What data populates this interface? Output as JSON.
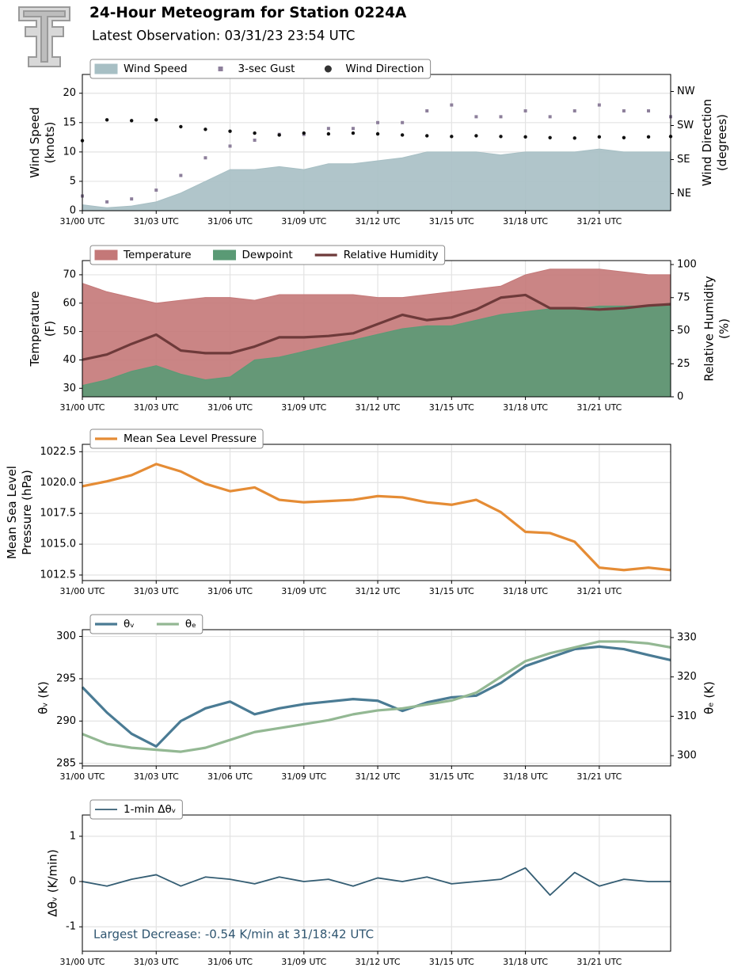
{
  "header": {
    "title": "24-Hour Meteogram for Station 0224A",
    "subtitle": "Latest Observation: 03/31/23 23:54 UTC"
  },
  "chart_data": [
    {
      "type": "meteogram-panel",
      "ylabel": [
        "Wind Speed",
        "(knots)"
      ],
      "y2label": [
        "Wind Direction",
        "(degrees)"
      ],
      "grid": true,
      "legend": "upper left",
      "xlim": [
        0,
        23.9
      ],
      "xticks": [
        {
          "value": 0,
          "label": "31/00 UTC"
        },
        {
          "value": 3,
          "label": "31/03 UTC"
        },
        {
          "value": 6,
          "label": "31/06 UTC"
        },
        {
          "value": 9,
          "label": "31/09 UTC"
        },
        {
          "value": 12,
          "label": "31/12 UTC"
        },
        {
          "value": 15,
          "label": "31/15 UTC"
        },
        {
          "value": 18,
          "label": "31/18 UTC"
        },
        {
          "value": 21,
          "label": "31/21 UTC"
        }
      ],
      "ylim": [
        0,
        23.2
      ],
      "yticks": [
        0,
        5,
        10,
        15,
        20
      ],
      "y2lim": [
        0,
        360
      ],
      "y2ticks": [
        {
          "value": 45,
          "label": "NE"
        },
        {
          "value": 135,
          "label": "SE"
        },
        {
          "value": 225,
          "label": "SW"
        },
        {
          "value": 315,
          "label": "NW"
        }
      ],
      "x": [
        0,
        1,
        2,
        3,
        4,
        5,
        6,
        7,
        8,
        9,
        10,
        11,
        12,
        13,
        14,
        15,
        16,
        17,
        18,
        19,
        20,
        21,
        22,
        23,
        23.9
      ],
      "series": [
        {
          "name": "Wind Speed",
          "style": "area",
          "color": "#a7bfc4",
          "values": [
            1,
            0.5,
            0.8,
            1.5,
            3,
            5,
            7,
            7,
            7.5,
            7,
            8,
            8,
            8.5,
            9,
            10,
            10,
            10,
            9.5,
            10,
            10,
            10,
            10.5,
            10,
            10,
            10
          ]
        },
        {
          "name": "3-sec Gust",
          "style": "squares",
          "color": "#8d7f9b",
          "values": [
            2.5,
            1.5,
            2,
            3.5,
            6,
            9,
            11,
            12,
            13,
            13,
            14,
            14,
            15,
            15,
            17,
            18,
            16,
            16,
            17,
            16,
            17,
            18,
            17,
            17,
            16
          ]
        },
        {
          "name": "Wind Direction",
          "style": "points",
          "color": "#111111",
          "axis": "y2",
          "values": [
            185,
            240,
            238,
            240,
            222,
            215,
            210,
            205,
            200,
            205,
            203,
            205,
            203,
            200,
            198,
            196,
            198,
            196,
            195,
            193,
            192,
            195,
            193,
            195,
            196
          ]
        }
      ]
    },
    {
      "type": "meteogram-panel",
      "ylabel": [
        "Temperature",
        "(F)"
      ],
      "y2label": [
        "Relative Humidity",
        "(%)"
      ],
      "grid": true,
      "legend": "upper left",
      "xlim": [
        0,
        23.9
      ],
      "xticks": [
        {
          "value": 0,
          "label": "31/00 UTC"
        },
        {
          "value": 3,
          "label": "31/03 UTC"
        },
        {
          "value": 6,
          "label": "31/06 UTC"
        },
        {
          "value": 9,
          "label": "31/09 UTC"
        },
        {
          "value": 12,
          "label": "31/12 UTC"
        },
        {
          "value": 15,
          "label": "31/15 UTC"
        },
        {
          "value": 18,
          "label": "31/18 UTC"
        },
        {
          "value": 21,
          "label": "31/21 UTC"
        }
      ],
      "ylim": [
        27,
        75
      ],
      "yticks": [
        30,
        40,
        50,
        60,
        70
      ],
      "y2lim": [
        0,
        103
      ],
      "y2ticks": [
        0,
        25,
        50,
        75,
        100
      ],
      "x": [
        0,
        1,
        2,
        3,
        4,
        5,
        6,
        7,
        8,
        9,
        10,
        11,
        12,
        13,
        14,
        15,
        16,
        17,
        18,
        19,
        20,
        21,
        22,
        23,
        23.9
      ],
      "series": [
        {
          "name": "Temperature",
          "style": "area",
          "color": "#c47878",
          "values": [
            67,
            64,
            62,
            60,
            61,
            62,
            62,
            61,
            63,
            63,
            63,
            63,
            62,
            62,
            63,
            64,
            65,
            66,
            70,
            72,
            72,
            72,
            71,
            70,
            70
          ]
        },
        {
          "name": "Dewpoint",
          "style": "area",
          "color": "#5a9a75",
          "values": [
            31,
            33,
            36,
            38,
            35,
            33,
            34,
            40,
            41,
            43,
            45,
            47,
            49,
            51,
            52,
            52,
            54,
            56,
            57,
            58,
            58,
            59,
            59,
            59,
            60
          ]
        },
        {
          "name": "Relative Humidity",
          "style": "line",
          "color": "#6e3a3a",
          "axis": "y2",
          "values": [
            28,
            32,
            40,
            47,
            35,
            33,
            33,
            38,
            45,
            45,
            46,
            48,
            55,
            62,
            58,
            60,
            66,
            75,
            77,
            67,
            67,
            66,
            67,
            69,
            70
          ]
        }
      ]
    },
    {
      "type": "meteogram-panel",
      "ylabel": [
        "Mean Sea Level",
        "Pressure (hPa)"
      ],
      "grid": true,
      "legend": "upper left",
      "xlim": [
        0,
        23.9
      ],
      "xticks": [
        {
          "value": 0,
          "label": "31/00 UTC"
        },
        {
          "value": 3,
          "label": "31/03 UTC"
        },
        {
          "value": 6,
          "label": "31/06 UTC"
        },
        {
          "value": 9,
          "label": "31/09 UTC"
        },
        {
          "value": 12,
          "label": "31/12 UTC"
        },
        {
          "value": 15,
          "label": "31/15 UTC"
        },
        {
          "value": 18,
          "label": "31/18 UTC"
        },
        {
          "value": 21,
          "label": "31/21 UTC"
        }
      ],
      "ylim": [
        1012.05,
        1023.1
      ],
      "yticks": [
        {
          "value": 1012.5,
          "label": "1012.5"
        },
        {
          "value": 1015,
          "label": "1015.0"
        },
        {
          "value": 1017.5,
          "label": "1017.5"
        },
        {
          "value": 1020,
          "label": "1020.0"
        },
        {
          "value": 1022.5,
          "label": "1022.5"
        }
      ],
      "x": [
        0,
        1,
        2,
        3,
        4,
        5,
        6,
        7,
        8,
        9,
        10,
        11,
        12,
        13,
        14,
        15,
        16,
        17,
        18,
        19,
        20,
        21,
        22,
        23,
        23.9
      ],
      "series": [
        {
          "name": "Mean Sea Level Pressure",
          "style": "line",
          "color": "#e58c35",
          "values": [
            1019.7,
            1020.1,
            1020.6,
            1021.5,
            1020.9,
            1019.9,
            1019.3,
            1019.6,
            1018.6,
            1018.4,
            1018.5,
            1018.6,
            1018.9,
            1018.8,
            1018.4,
            1018.2,
            1018.6,
            1017.6,
            1016.0,
            1015.9,
            1015.2,
            1013.1,
            1012.9,
            1013.1,
            1012.9
          ]
        }
      ]
    },
    {
      "type": "meteogram-panel",
      "ylabel": [
        "θᵥ (K)"
      ],
      "y2label": [
        "θₑ (K)"
      ],
      "grid": true,
      "legend": "upper left",
      "xlim": [
        0,
        23.9
      ],
      "xticks": [
        {
          "value": 0,
          "label": "31/00 UTC"
        },
        {
          "value": 3,
          "label": "31/03 UTC"
        },
        {
          "value": 6,
          "label": "31/06 UTC"
        },
        {
          "value": 9,
          "label": "31/09 UTC"
        },
        {
          "value": 12,
          "label": "31/12 UTC"
        },
        {
          "value": 15,
          "label": "31/15 UTC"
        },
        {
          "value": 18,
          "label": "31/18 UTC"
        },
        {
          "value": 21,
          "label": "31/21 UTC"
        }
      ],
      "ylim": [
        284.7,
        300.8
      ],
      "yticks": [
        285,
        290,
        295,
        300
      ],
      "y2lim": [
        297.4,
        332
      ],
      "y2ticks": [
        300,
        310,
        320,
        330
      ],
      "x": [
        0,
        1,
        2,
        3,
        4,
        5,
        6,
        7,
        8,
        9,
        10,
        11,
        12,
        13,
        14,
        15,
        16,
        17,
        18,
        19,
        20,
        21,
        22,
        23,
        23.9
      ],
      "series": [
        {
          "name": "θᵥ",
          "style": "line",
          "color": "#4a7b94",
          "values": [
            294,
            291,
            288.5,
            287,
            290,
            291.5,
            292.3,
            290.8,
            291.5,
            292,
            292.3,
            292.6,
            292.4,
            291.2,
            292.2,
            292.8,
            293,
            294.5,
            296.5,
            297.5,
            298.5,
            298.8,
            298.5,
            297.8,
            297.2
          ]
        },
        {
          "name": "θₑ",
          "style": "line",
          "color": "#93b893",
          "axis": "y2",
          "values": [
            305.5,
            303,
            302,
            301.5,
            301,
            302,
            304,
            306,
            307,
            308,
            309,
            310.5,
            311.5,
            312,
            313,
            314,
            316,
            320,
            324,
            326,
            327.5,
            329,
            329,
            328.5,
            327.5
          ]
        }
      ]
    },
    {
      "type": "meteogram-panel",
      "ylabel": [
        "Δθᵥ (K/min)"
      ],
      "grid": true,
      "legend": "upper left",
      "annotation": "Largest Decrease: -0.54 K/min at 31/18:42 UTC",
      "xlim": [
        0,
        23.9
      ],
      "xticks": [
        {
          "value": 0,
          "label": "31/00 UTC"
        },
        {
          "value": 3,
          "label": "31/03 UTC"
        },
        {
          "value": 6,
          "label": "31/06 UTC"
        },
        {
          "value": 9,
          "label": "31/09 UTC"
        },
        {
          "value": 12,
          "label": "31/12 UTC"
        },
        {
          "value": 15,
          "label": "31/15 UTC"
        },
        {
          "value": 18,
          "label": "31/18 UTC"
        },
        {
          "value": 21,
          "label": "31/21 UTC"
        }
      ],
      "ylim": [
        -1.54,
        1.47
      ],
      "yticks": [
        -1,
        0,
        1
      ],
      "x": [
        0,
        1,
        2,
        3,
        4,
        5,
        6,
        7,
        8,
        9,
        10,
        11,
        12,
        13,
        14,
        15,
        16,
        17,
        18,
        19,
        20,
        21,
        22,
        23,
        23.9
      ],
      "series": [
        {
          "name": "1-min Δθᵥ",
          "style": "line",
          "color": "#345d73",
          "thin": true,
          "values": [
            0,
            -0.1,
            0.05,
            0.15,
            -0.1,
            0.1,
            0.05,
            -0.05,
            0.1,
            0,
            0.05,
            -0.1,
            0.08,
            0,
            0.1,
            -0.05,
            0,
            0.05,
            0.3,
            -0.3,
            0.2,
            -0.1,
            0.05,
            0,
            0
          ]
        }
      ]
    }
  ]
}
